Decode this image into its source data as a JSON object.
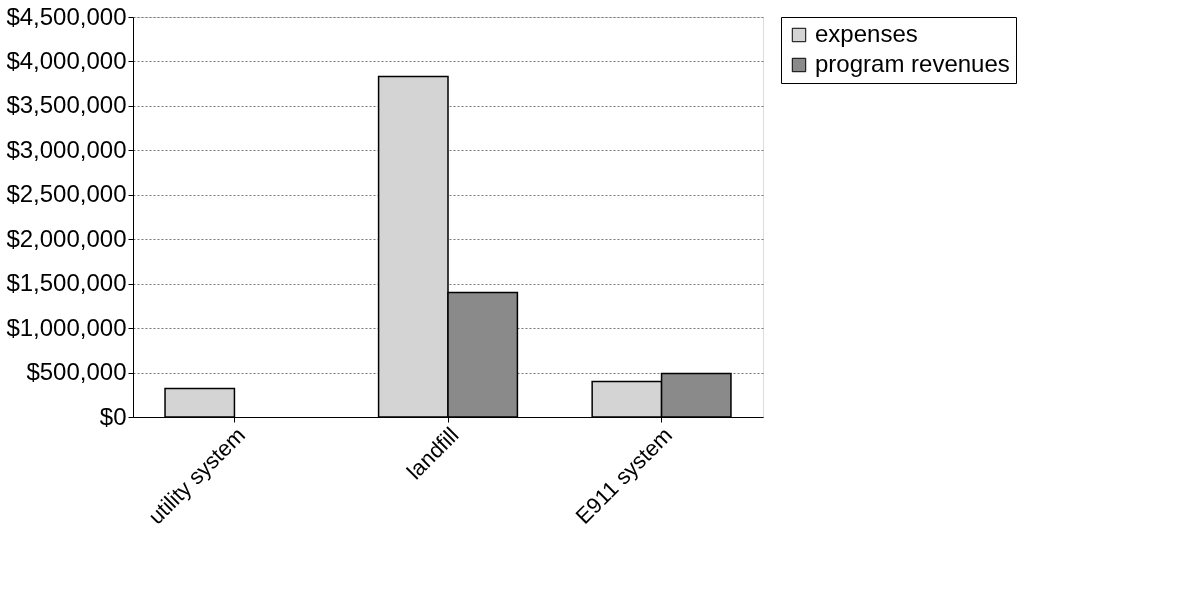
{
  "chart_data": {
    "type": "bar",
    "categories": [
      "utility system",
      "landfill",
      "E911 system"
    ],
    "series": [
      {
        "name": "expenses",
        "color": "#d4d4d4",
        "values": [
          320000,
          3830000,
          400000
        ]
      },
      {
        "name": "program revenues",
        "color": "#8a8a8a",
        "values": [
          null,
          1400000,
          490000
        ]
      }
    ],
    "ylim": [
      0,
      4500000
    ],
    "yticks": [
      {
        "value": 0,
        "label": "$0"
      },
      {
        "value": 500000,
        "label": "$500,000"
      },
      {
        "value": 1000000,
        "label": "$1,000,000"
      },
      {
        "value": 1500000,
        "label": "$1,500,000"
      },
      {
        "value": 2000000,
        "label": "$2,000,000"
      },
      {
        "value": 2500000,
        "label": "$2,500,000"
      },
      {
        "value": 3000000,
        "label": "$3,000,000"
      },
      {
        "value": 3500000,
        "label": "$3,500,000"
      },
      {
        "value": 4000000,
        "label": "$4,000,000"
      },
      {
        "value": 4500000,
        "label": "$4,500,000"
      }
    ],
    "grid": "y",
    "legend": "right"
  }
}
